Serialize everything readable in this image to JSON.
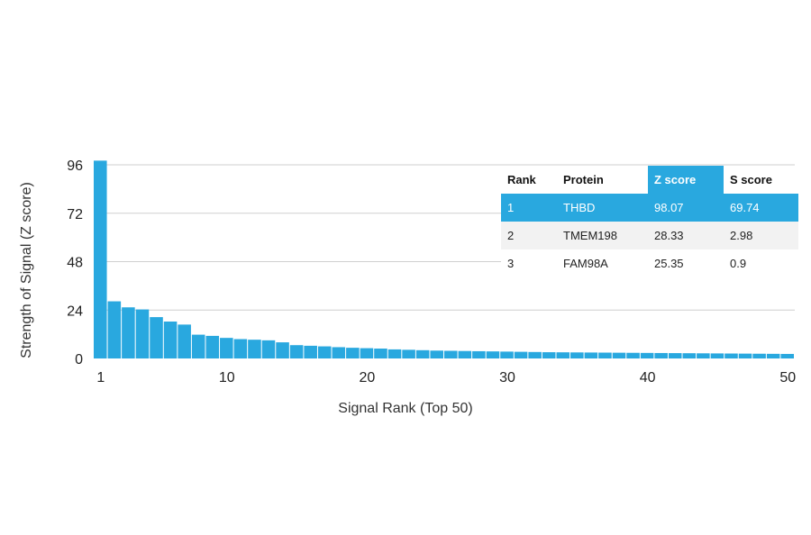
{
  "chart_data": {
    "type": "bar",
    "xlabel": "Signal Rank (Top 50)",
    "ylabel": "Strength of Signal (Z score)",
    "ylim": [
      0,
      96
    ],
    "yticks": [
      0,
      24,
      48,
      72,
      96
    ],
    "xticks": [
      1,
      10,
      20,
      30,
      40,
      50
    ],
    "grid": "horizontal",
    "bar_color": "#29a8df",
    "x": [
      1,
      2,
      3,
      4,
      5,
      6,
      7,
      8,
      9,
      10,
      11,
      12,
      13,
      14,
      15,
      16,
      17,
      18,
      19,
      20,
      21,
      22,
      23,
      24,
      25,
      26,
      27,
      28,
      29,
      30,
      31,
      32,
      33,
      34,
      35,
      36,
      37,
      38,
      39,
      40,
      41,
      42,
      43,
      44,
      45,
      46,
      47,
      48,
      49,
      50
    ],
    "values": [
      98.07,
      28.33,
      25.35,
      24.3,
      20.5,
      18.3,
      16.8,
      11.8,
      11.2,
      10.2,
      9.6,
      9.3,
      9.0,
      8.0,
      6.6,
      6.3,
      6.0,
      5.6,
      5.3,
      5.1,
      4.9,
      4.5,
      4.3,
      4.1,
      3.9,
      3.8,
      3.7,
      3.6,
      3.5,
      3.4,
      3.3,
      3.2,
      3.1,
      3.05,
      3.0,
      2.95,
      2.9,
      2.85,
      2.8,
      2.75,
      2.7,
      2.65,
      2.6,
      2.55,
      2.5,
      2.45,
      2.4,
      2.35,
      2.3,
      2.25
    ]
  },
  "table": {
    "headers": [
      "Rank",
      "Protein",
      "Z score",
      "S score"
    ],
    "highlight_color": "#29a8df",
    "rows": [
      [
        "1",
        "THBD",
        "98.07",
        "69.74"
      ],
      [
        "2",
        "TMEM198",
        "28.33",
        "2.98"
      ],
      [
        "3",
        "FAM98A",
        "25.35",
        "0.9"
      ]
    ]
  }
}
